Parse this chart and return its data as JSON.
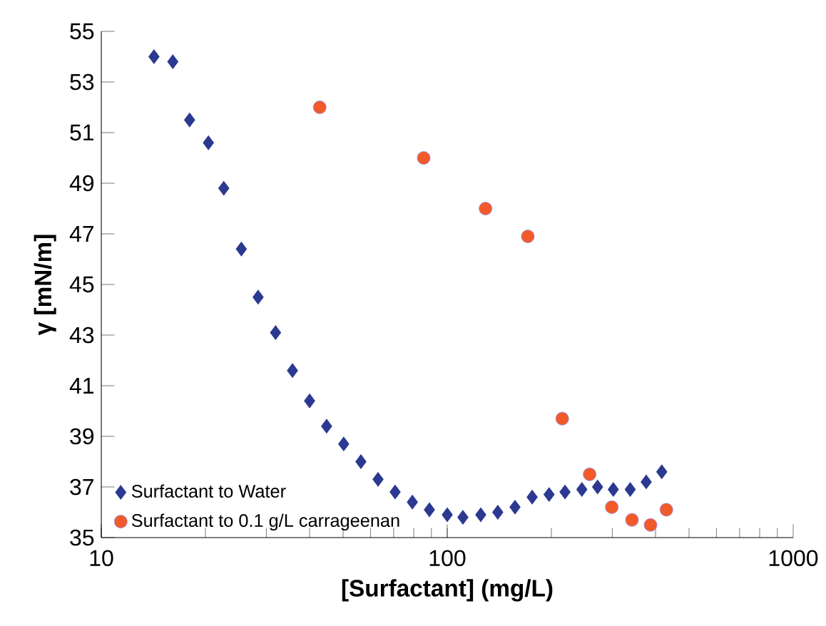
{
  "chart_data": {
    "type": "scatter",
    "xlabel": "[Surfactant] (mg/L)",
    "ylabel": "γ [mN/m]",
    "log": "x",
    "xlim": [
      10,
      1000
    ],
    "xticks": [
      10,
      100,
      1000
    ],
    "ylim": [
      35,
      55
    ],
    "yticks": [
      35,
      37,
      39,
      41,
      43,
      45,
      47,
      49,
      51,
      53,
      55
    ],
    "grid": false,
    "legend": "bottom left",
    "series": [
      {
        "name": "Surfactant to Water",
        "color": "#2b3990",
        "marker": "diamond",
        "x": [
          14.2,
          16.1,
          18.0,
          20.4,
          22.6,
          25.4,
          28.4,
          31.9,
          35.7,
          40.0,
          44.8,
          50.2,
          56.3,
          63.1,
          70.7,
          79.3,
          88.8,
          100,
          111,
          125,
          140,
          157,
          176,
          197,
          219,
          245,
          272,
          302,
          338,
          376,
          417
        ],
        "values": [
          54.0,
          53.8,
          51.5,
          50.6,
          48.8,
          46.4,
          44.5,
          43.1,
          41.6,
          40.4,
          39.4,
          38.7,
          38.0,
          37.3,
          36.8,
          36.4,
          36.1,
          35.9,
          35.8,
          35.9,
          36.0,
          36.2,
          36.6,
          36.7,
          36.8,
          36.9,
          37.0,
          36.9,
          36.9,
          37.2,
          37.6
        ]
      },
      {
        "name": "Surfactant to 0.1 g/L carrageenan",
        "color": "#f15a29",
        "marker": "circle",
        "x": [
          42.8,
          85.5,
          129,
          171,
          215,
          258,
          299,
          342,
          387,
          430
        ],
        "values": [
          52.0,
          50.0,
          48.0,
          46.9,
          39.7,
          37.5,
          36.2,
          35.7,
          35.5,
          36.1
        ]
      }
    ]
  }
}
